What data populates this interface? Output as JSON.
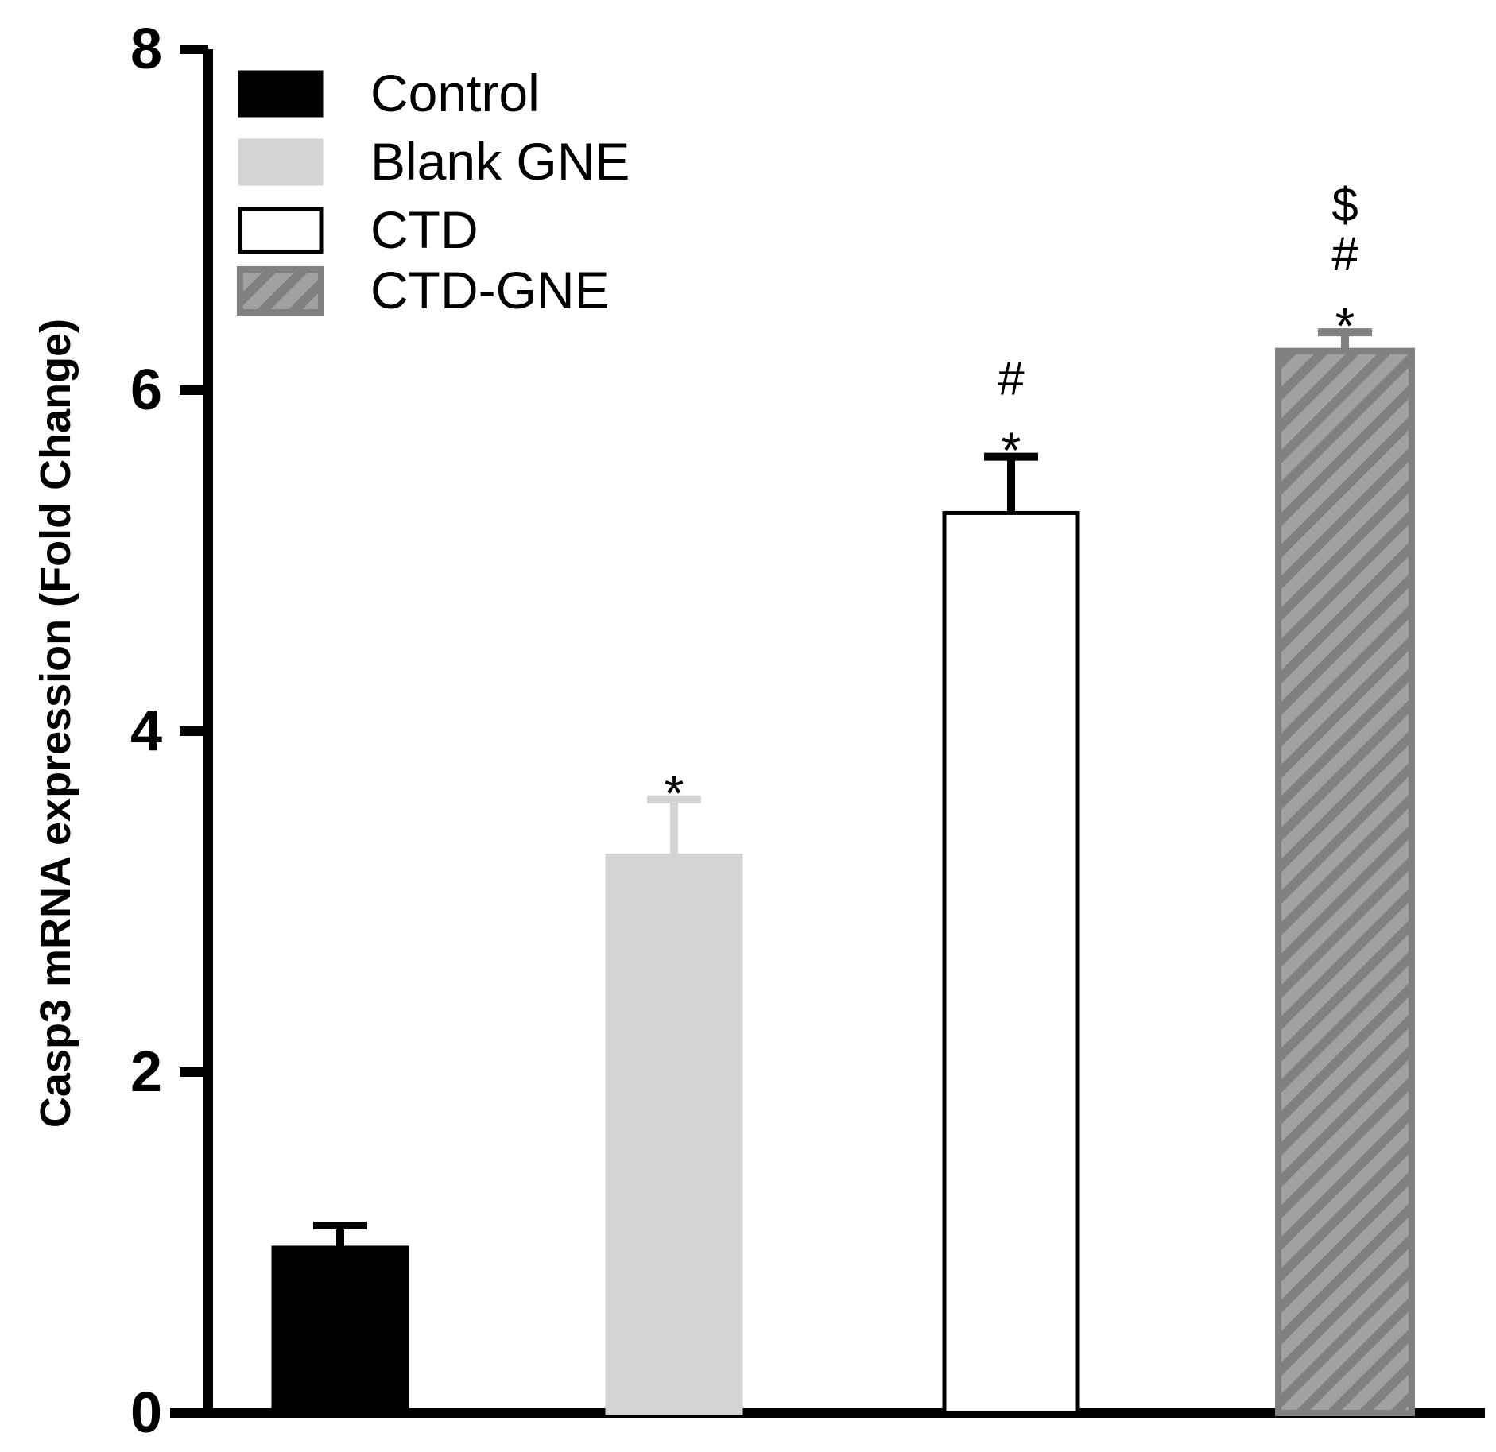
{
  "chart_data": {
    "type": "bar",
    "title": "",
    "xlabel": "",
    "ylabel": "Casp3 mRNA expression (Fold Change)",
    "ylim": [
      0,
      8
    ],
    "yticks": [
      0,
      2,
      4,
      6,
      8
    ],
    "ytick_labels": [
      "0",
      "2",
      "4",
      "6",
      "8"
    ],
    "grid": false,
    "legend_position": "top-left",
    "categories": [
      "Control",
      "Blank GNE",
      "CTD",
      "CTD-GNE"
    ],
    "values": [
      0.97,
      3.27,
      5.28,
      6.23
    ],
    "errors": [
      0.13,
      0.33,
      0.33,
      0.11
    ],
    "annotations": [
      [],
      [
        "*"
      ],
      [
        "*",
        "#"
      ],
      [
        "*",
        "#",
        "$"
      ]
    ],
    "styles": [
      {
        "fill": "#000000",
        "stroke": "#000000",
        "pattern": "solid"
      },
      {
        "fill": "#d4d4d4",
        "stroke": "#d4d4d4",
        "pattern": "solid"
      },
      {
        "fill": "#ffffff",
        "stroke": "#000000",
        "pattern": "solid"
      },
      {
        "fill": "#a1a1a1",
        "stroke": "#808080",
        "pattern": "hatch",
        "hatch_color": "#808080"
      }
    ]
  }
}
